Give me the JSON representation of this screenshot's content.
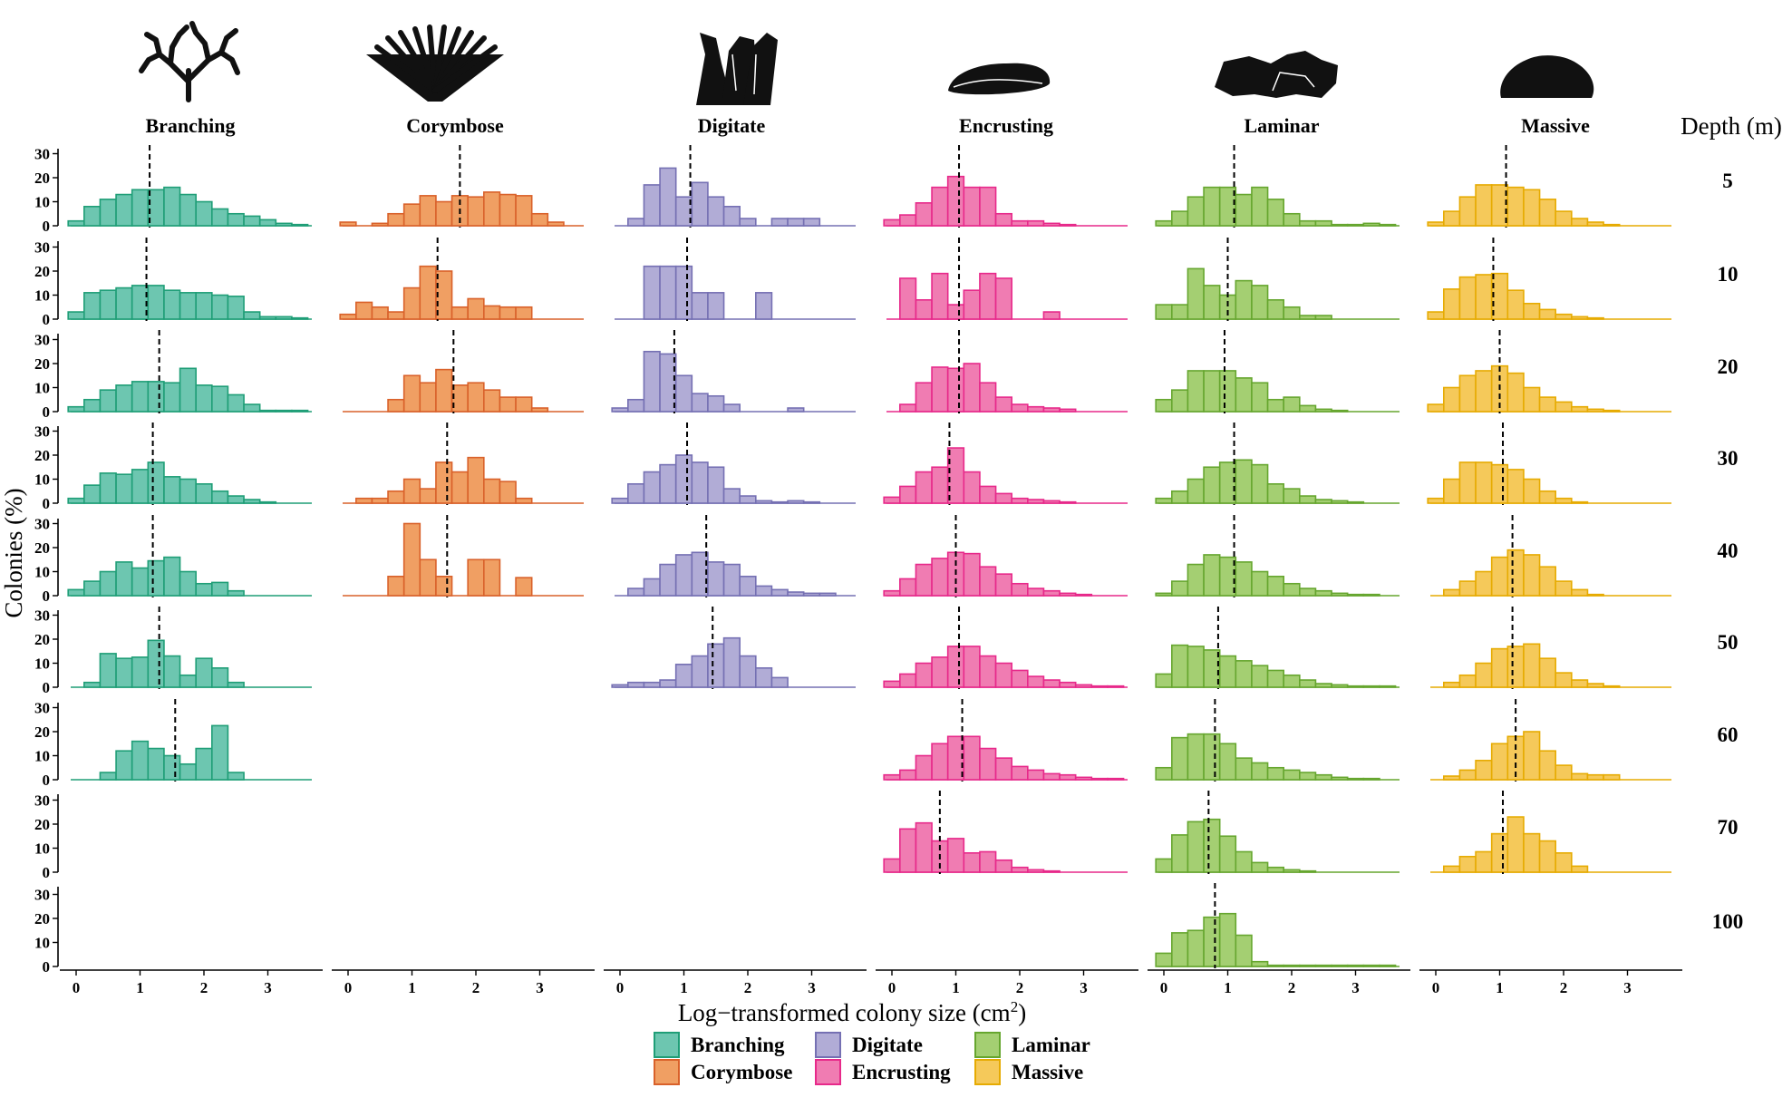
{
  "chart_data": {
    "type": "bar",
    "xlabel": "Log−transformed colony size (cm",
    "xlabel_sup": "2",
    "xlabel_end": ")",
    "ylabel": "Colonies (%)",
    "depth_label": "Depth (m)",
    "depths": [
      "5",
      "10",
      "20",
      "30",
      "40",
      "50",
      "60",
      "70",
      "100"
    ],
    "x_ticks": [
      "0",
      "1",
      "2",
      "3"
    ],
    "y_ticks": [
      "0",
      "10",
      "20",
      "30"
    ],
    "xlim": [
      -0.1,
      3.75
    ],
    "ylim": [
      0,
      32
    ],
    "bin_start": -0.125,
    "bin_width": 0.25,
    "morphologies": [
      {
        "name": "Branching",
        "fill": "#6dc6b0",
        "stroke": "#1f9e77",
        "rows": [
          {
            "depth": "5",
            "mean": 1.15,
            "values": [
              2,
              8,
              11,
              13,
              15,
              15,
              16,
              13,
              10,
              7,
              5,
              4,
              2.5,
              1,
              0.5,
              0
            ]
          },
          {
            "depth": "10",
            "mean": 1.1,
            "values": [
              3,
              11,
              12,
              13,
              14,
              14,
              12,
              11,
              11,
              10,
              9.5,
              3,
              1,
              1,
              0.5,
              0
            ]
          },
          {
            "depth": "20",
            "mean": 1.3,
            "values": [
              2,
              5,
              9,
              11,
              12.5,
              12.5,
              12,
              18,
              11,
              10.5,
              7,
              3,
              0.5,
              0.5,
              0.5,
              0
            ]
          },
          {
            "depth": "30",
            "mean": 1.2,
            "values": [
              2,
              7.5,
              12.5,
              12,
              14,
              17,
              11,
              10,
              8,
              5,
              3,
              1.5,
              0.5,
              0,
              0,
              0
            ]
          },
          {
            "depth": "40",
            "mean": 1.2,
            "values": [
              2.5,
              6,
              10,
              14,
              11.5,
              14.5,
              16,
              10,
              5,
              5.5,
              2,
              0,
              0,
              0,
              0,
              0
            ]
          },
          {
            "depth": "50",
            "mean": 1.3,
            "values": [
              0,
              2,
              14,
              12,
              12.5,
              19.5,
              13,
              5,
              12,
              8,
              2,
              0,
              0,
              0,
              0,
              0
            ]
          },
          {
            "depth": "60",
            "mean": 1.55,
            "values": [
              0,
              0,
              3,
              12,
              16,
              13,
              10,
              6.5,
              13,
              22.5,
              3,
              0,
              0,
              0,
              0,
              0
            ]
          }
        ]
      },
      {
        "name": "Corymbose",
        "fill": "#f09f63",
        "stroke": "#d9612a",
        "rows": [
          {
            "depth": "5",
            "mean": 1.75,
            "values": [
              1.5,
              0,
              1,
              5,
              9,
              12.5,
              10,
              12.5,
              12,
              14,
              13,
              12.5,
              5,
              1.5,
              0,
              0
            ]
          },
          {
            "depth": "10",
            "mean": 1.4,
            "values": [
              2,
              7,
              5,
              3,
              13,
              22,
              20,
              5,
              8.5,
              5.5,
              5,
              5,
              0,
              0,
              0,
              0
            ]
          },
          {
            "depth": "20",
            "mean": 1.65,
            "values": [
              0,
              0,
              0,
              5,
              15,
              12,
              17.5,
              11,
              12,
              9,
              6,
              6,
              1.5,
              0,
              0,
              0
            ]
          },
          {
            "depth": "30",
            "mean": 1.55,
            "values": [
              0,
              2,
              2,
              5,
              10,
              6,
              17,
              13,
              19,
              10,
              9,
              2,
              0,
              0,
              0,
              0
            ]
          },
          {
            "depth": "40",
            "mean": 1.55,
            "values": [
              0,
              0,
              0,
              8,
              30,
              15,
              8,
              0,
              15,
              15,
              0,
              7.5,
              0,
              0,
              0,
              0
            ]
          }
        ]
      },
      {
        "name": "Digitate",
        "fill": "#b1acd6",
        "stroke": "#7570b3",
        "rows": [
          {
            "depth": "5",
            "mean": 1.1,
            "values": [
              0,
              3,
              17,
              24,
              12,
              18,
              12,
              8,
              3,
              0,
              3,
              3,
              3,
              0,
              0,
              0
            ]
          },
          {
            "depth": "10",
            "mean": 1.05,
            "values": [
              0,
              0,
              22,
              22,
              22,
              11,
              11,
              0,
              0,
              11,
              0,
              0,
              0,
              0,
              0,
              0
            ]
          },
          {
            "depth": "20",
            "mean": 0.85,
            "values": [
              1.5,
              5,
              25,
              24,
              15,
              7.5,
              6.5,
              3,
              0,
              0,
              0,
              1.5,
              0,
              0,
              0,
              0
            ]
          },
          {
            "depth": "30",
            "mean": 1.05,
            "values": [
              2,
              8,
              13,
              16,
              20,
              17,
              15,
              6,
              3,
              1,
              0.5,
              1,
              0.5,
              0,
              0,
              0
            ]
          },
          {
            "depth": "40",
            "mean": 1.35,
            "values": [
              0,
              3,
              7,
              13,
              17,
              18,
              14,
              13,
              8,
              4,
              2.5,
              1.5,
              1,
              1,
              0,
              0
            ]
          },
          {
            "depth": "50",
            "mean": 1.45,
            "values": [
              1,
              2,
              2,
              3,
              9.5,
              13,
              18,
              20.5,
              13,
              8,
              4,
              0,
              0,
              0,
              0,
              0
            ]
          }
        ]
      },
      {
        "name": "Encrusting",
        "fill": "#f07cb2",
        "stroke": "#e7298a",
        "rows": [
          {
            "depth": "5",
            "mean": 1.05,
            "values": [
              2.5,
              4.5,
              9.5,
              16,
              20.5,
              16,
              16,
              5,
              2,
              2,
              1,
              0.5,
              0,
              0,
              0,
              0
            ]
          },
          {
            "depth": "10",
            "mean": 1.05,
            "values": [
              0,
              17,
              8,
              19,
              6,
              12,
              19,
              17,
              0,
              0,
              3,
              0,
              0,
              0,
              0,
              0
            ]
          },
          {
            "depth": "20",
            "mean": 1.05,
            "values": [
              0,
              3,
              12,
              18.5,
              18,
              20,
              12,
              6,
              3,
              2,
              1.5,
              1,
              0,
              0,
              0,
              0
            ]
          },
          {
            "depth": "30",
            "mean": 0.9,
            "values": [
              2.5,
              7,
              13,
              15,
              23,
              13,
              7,
              4,
              2,
              1.5,
              1,
              0.5,
              0,
              0,
              0,
              0
            ]
          },
          {
            "depth": "40",
            "mean": 1.0,
            "values": [
              2,
              7,
              13,
              15.5,
              18,
              17.5,
              12,
              9,
              5,
              3,
              2,
              1,
              0.5,
              0,
              0,
              0
            ]
          },
          {
            "depth": "50",
            "mean": 1.05,
            "values": [
              2.5,
              5.5,
              10,
              12.5,
              17,
              17,
              13,
              10,
              7,
              4.5,
              3,
              2,
              1,
              0.5,
              0.5,
              0
            ]
          },
          {
            "depth": "60",
            "mean": 1.1,
            "values": [
              2,
              4,
              10,
              15,
              18,
              18,
              13,
              9,
              5.5,
              4,
              2.5,
              2,
              1,
              0.5,
              0.5,
              0
            ]
          },
          {
            "depth": "70",
            "mean": 0.75,
            "values": [
              5.5,
              18,
              20.5,
              13,
              14,
              8,
              8.5,
              5,
              2,
              1,
              0.5,
              0,
              0,
              0,
              0,
              0
            ]
          }
        ]
      },
      {
        "name": "Laminar",
        "fill": "#a4cf72",
        "stroke": "#66a62f",
        "rows": [
          {
            "depth": "5",
            "mean": 1.1,
            "values": [
              2,
              6,
              12,
              16,
              16,
              13,
              16,
              11,
              5,
              2,
              2,
              0.5,
              0.5,
              1,
              0.5,
              0
            ]
          },
          {
            "depth": "10",
            "mean": 1.0,
            "values": [
              6,
              6,
              21,
              14,
              10,
              16,
              14,
              8,
              5,
              1.5,
              1.5,
              0,
              0,
              0,
              0,
              0
            ]
          },
          {
            "depth": "20",
            "mean": 0.95,
            "values": [
              5,
              9,
              17,
              17,
              17,
              14,
              12,
              5,
              6,
              2.5,
              1,
              0.5,
              0,
              0,
              0,
              0
            ]
          },
          {
            "depth": "30",
            "mean": 1.1,
            "values": [
              2,
              5,
              10,
              15,
              17,
              18,
              16,
              8,
              6,
              3,
              1.5,
              1,
              0.5,
              0,
              0,
              0
            ]
          },
          {
            "depth": "40",
            "mean": 1.1,
            "values": [
              1,
              6,
              13,
              17,
              16,
              14,
              10,
              8,
              5,
              3,
              2,
              1,
              0.5,
              0.5,
              0,
              0
            ]
          },
          {
            "depth": "50",
            "mean": 0.85,
            "values": [
              5.5,
              17.5,
              17,
              15.5,
              13,
              11,
              9,
              7,
              5,
              3,
              1.5,
              1,
              0.5,
              0.5,
              0.5,
              0
            ]
          },
          {
            "depth": "60",
            "mean": 0.8,
            "values": [
              5,
              17.5,
              19,
              19,
              15,
              9,
              7,
              5,
              4,
              3,
              2,
              1,
              0.5,
              0.5,
              0,
              0
            ]
          },
          {
            "depth": "70",
            "mean": 0.7,
            "values": [
              5.5,
              15.5,
              21,
              22,
              15,
              8.5,
              4,
              2,
              1,
              0.5,
              0,
              0,
              0,
              0,
              0,
              0
            ]
          },
          {
            "depth": "100",
            "mean": 0.8,
            "values": [
              5.5,
              14,
              15,
              20.5,
              22,
              13,
              2,
              0.5,
              0.5,
              0.5,
              0.5,
              0.5,
              0.5,
              0.5,
              0.5,
              0
            ]
          }
        ]
      },
      {
        "name": "Massive",
        "fill": "#f5c95a",
        "stroke": "#e6ab02",
        "rows": [
          {
            "depth": "5",
            "mean": 1.1,
            "values": [
              1.5,
              6,
              12,
              17,
              17,
              16,
              15,
              11,
              6,
              3,
              1.5,
              0.5,
              0,
              0,
              0,
              0
            ]
          },
          {
            "depth": "10",
            "mean": 0.9,
            "values": [
              3,
              12.5,
              17.5,
              18.5,
              19,
              12,
              6.5,
              4,
              2,
              1,
              0.5,
              0,
              0,
              0,
              0,
              0
            ]
          },
          {
            "depth": "20",
            "mean": 1.0,
            "values": [
              3,
              10,
              15,
              17,
              19,
              16,
              10,
              6,
              4,
              2,
              1,
              0.5,
              0,
              0,
              0,
              0
            ]
          },
          {
            "depth": "30",
            "mean": 1.05,
            "values": [
              2,
              10,
              17,
              17,
              16,
              14,
              10,
              5,
              2,
              0.5,
              0,
              0,
              0,
              0,
              0,
              0
            ]
          },
          {
            "depth": "40",
            "mean": 1.2,
            "values": [
              0,
              2.5,
              6,
              10,
              16,
              19,
              17,
              12,
              6,
              2.5,
              0.5,
              0,
              0,
              0,
              0,
              0
            ]
          },
          {
            "depth": "50",
            "mean": 1.2,
            "values": [
              0,
              2,
              5,
              10,
              16,
              17,
              18,
              12,
              6,
              3,
              1.5,
              0.5,
              0,
              0,
              0,
              0
            ]
          },
          {
            "depth": "60",
            "mean": 1.25,
            "values": [
              0,
              1.5,
              4,
              8,
              15,
              18,
              20,
              12,
              6,
              2.5,
              2,
              2,
              0,
              0,
              0,
              0
            ]
          },
          {
            "depth": "70",
            "mean": 1.05,
            "values": [
              0,
              2.5,
              6.5,
              8.5,
              16,
              23,
              16,
              13,
              8,
              2.5,
              0,
              0,
              0,
              0,
              0,
              0
            ]
          }
        ]
      }
    ],
    "legend": [
      "Branching",
      "Corymbose",
      "Digitate",
      "Encrusting",
      "Laminar",
      "Massive"
    ]
  }
}
